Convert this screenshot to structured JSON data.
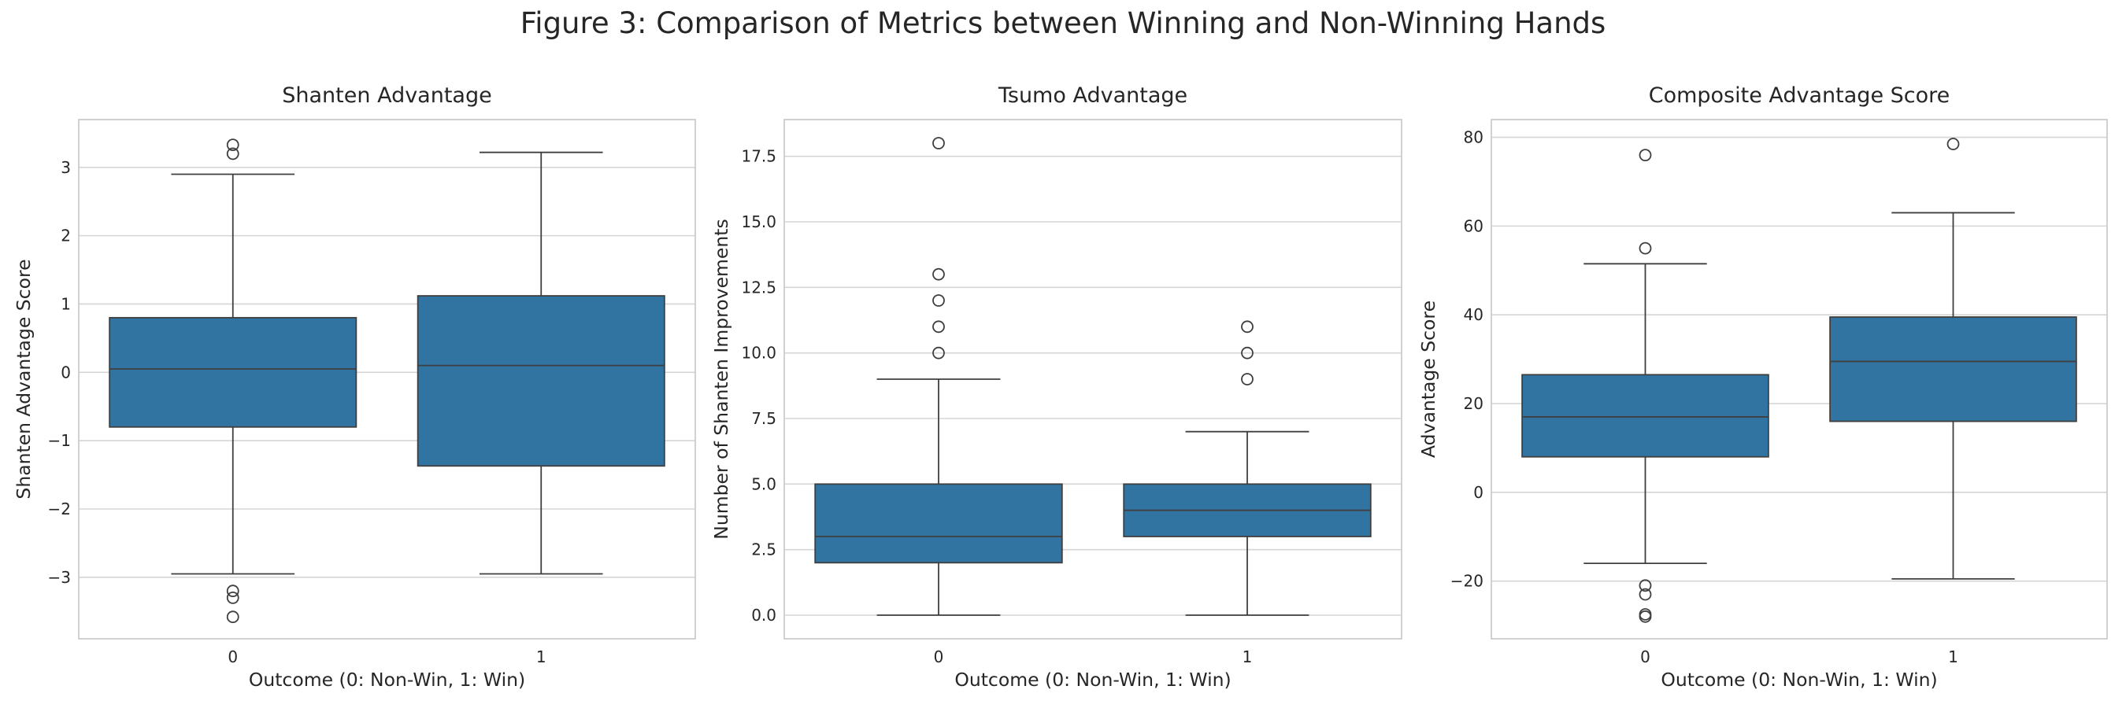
{
  "figure_title": "Figure 3: Comparison of Metrics between Winning and Non-Winning Hands",
  "colors": {
    "box_fill": "#3274a1",
    "line": "#3f3f3f",
    "grid": "#d5d5d5",
    "frame": "#cccccc",
    "text": "#262626"
  },
  "chart_data": [
    {
      "type": "box",
      "title": "Shanten Advantage",
      "xlabel": "Outcome (0: Non-Win, 1: Win)",
      "ylabel": "Shanten Advantage Score",
      "categories": [
        "0",
        "1"
      ],
      "ylim": [
        -3.9,
        3.7
      ],
      "yticks": [
        -3,
        -2,
        -1,
        0,
        1,
        2,
        3
      ],
      "ytick_labels": [
        "−3",
        "−2",
        "−1",
        "0",
        "1",
        "2",
        "3"
      ],
      "grid": true,
      "boxes": [
        {
          "category": "0",
          "whisker_low": -2.95,
          "q1": -0.8,
          "median": 0.05,
          "q3": 0.8,
          "whisker_high": 2.9,
          "outliers": [
            3.33,
            3.2,
            -3.2,
            -3.3,
            -3.58
          ]
        },
        {
          "category": "1",
          "whisker_low": -2.95,
          "q1": -1.37,
          "median": 0.1,
          "q3": 1.12,
          "whisker_high": 3.22,
          "outliers": []
        }
      ]
    },
    {
      "type": "box",
      "title": "Tsumo Advantage",
      "xlabel": "Outcome (0: Non-Win, 1: Win)",
      "ylabel": "Number of Shanten Improvements",
      "categories": [
        "0",
        "1"
      ],
      "ylim": [
        -0.9,
        18.9
      ],
      "yticks": [
        0,
        2.5,
        5,
        7.5,
        10,
        12.5,
        15,
        17.5
      ],
      "ytick_labels": [
        "0.0",
        "2.5",
        "5.0",
        "7.5",
        "10.0",
        "12.5",
        "15.0",
        "17.5"
      ],
      "grid": true,
      "boxes": [
        {
          "category": "0",
          "whisker_low": 0,
          "q1": 2,
          "median": 3,
          "q3": 5,
          "whisker_high": 9,
          "outliers": [
            10,
            11,
            12,
            13,
            18
          ]
        },
        {
          "category": "1",
          "whisker_low": 0,
          "q1": 3,
          "median": 4,
          "q3": 5,
          "whisker_high": 7,
          "outliers": [
            9,
            10,
            11
          ]
        }
      ]
    },
    {
      "type": "box",
      "title": "Composite Advantage Score",
      "xlabel": "Outcome (0: Non-Win, 1: Win)",
      "ylabel": "Advantage Score",
      "categories": [
        "0",
        "1"
      ],
      "ylim": [
        -33,
        84
      ],
      "yticks": [
        -20,
        0,
        20,
        40,
        60,
        80
      ],
      "ytick_labels": [
        "−20",
        "0",
        "20",
        "40",
        "60",
        "80"
      ],
      "grid": true,
      "boxes": [
        {
          "category": "0",
          "whisker_low": -16,
          "q1": 8,
          "median": 17,
          "q3": 26.5,
          "whisker_high": 51.5,
          "outliers": [
            76,
            55,
            -21,
            -23,
            -27.5,
            -28
          ]
        },
        {
          "category": "1",
          "whisker_low": -19.5,
          "q1": 16,
          "median": 29.5,
          "q3": 39.5,
          "whisker_high": 63,
          "outliers": [
            78.5
          ]
        }
      ]
    }
  ]
}
